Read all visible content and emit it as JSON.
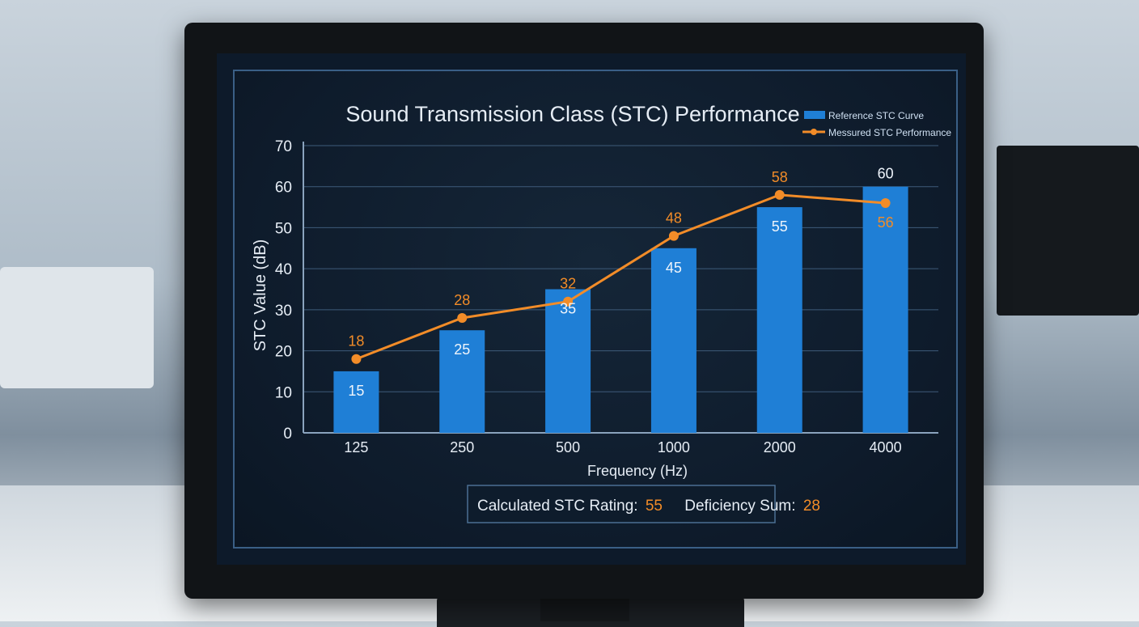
{
  "chart_data": {
    "type": "bar",
    "title": "Sound Transmission Class (STC) Performance",
    "xlabel": "Frequency (Hz)",
    "ylabel": "STC Value (dB)",
    "ylim": [
      0,
      70
    ],
    "yticks": [
      0,
      10,
      20,
      30,
      40,
      50,
      60,
      70
    ],
    "categories": [
      "125",
      "250",
      "500",
      "1000",
      "2000",
      "4000"
    ],
    "grid": true,
    "legend_position": "top-right",
    "series": [
      {
        "name": "Reference STC Curve",
        "type": "bar",
        "color": "#1f7fd6",
        "values": [
          15,
          25,
          35,
          45,
          55,
          60
        ]
      },
      {
        "name": "Messured STC Performance",
        "type": "line",
        "color": "#f28c28",
        "values": [
          18,
          28,
          32,
          48,
          58,
          56
        ]
      }
    ]
  },
  "summary": {
    "rating_label": "Calculated STC Rating:",
    "rating_value": "55",
    "deficiency_label": "Deficiency Sum:",
    "deficiency_value": "28"
  }
}
